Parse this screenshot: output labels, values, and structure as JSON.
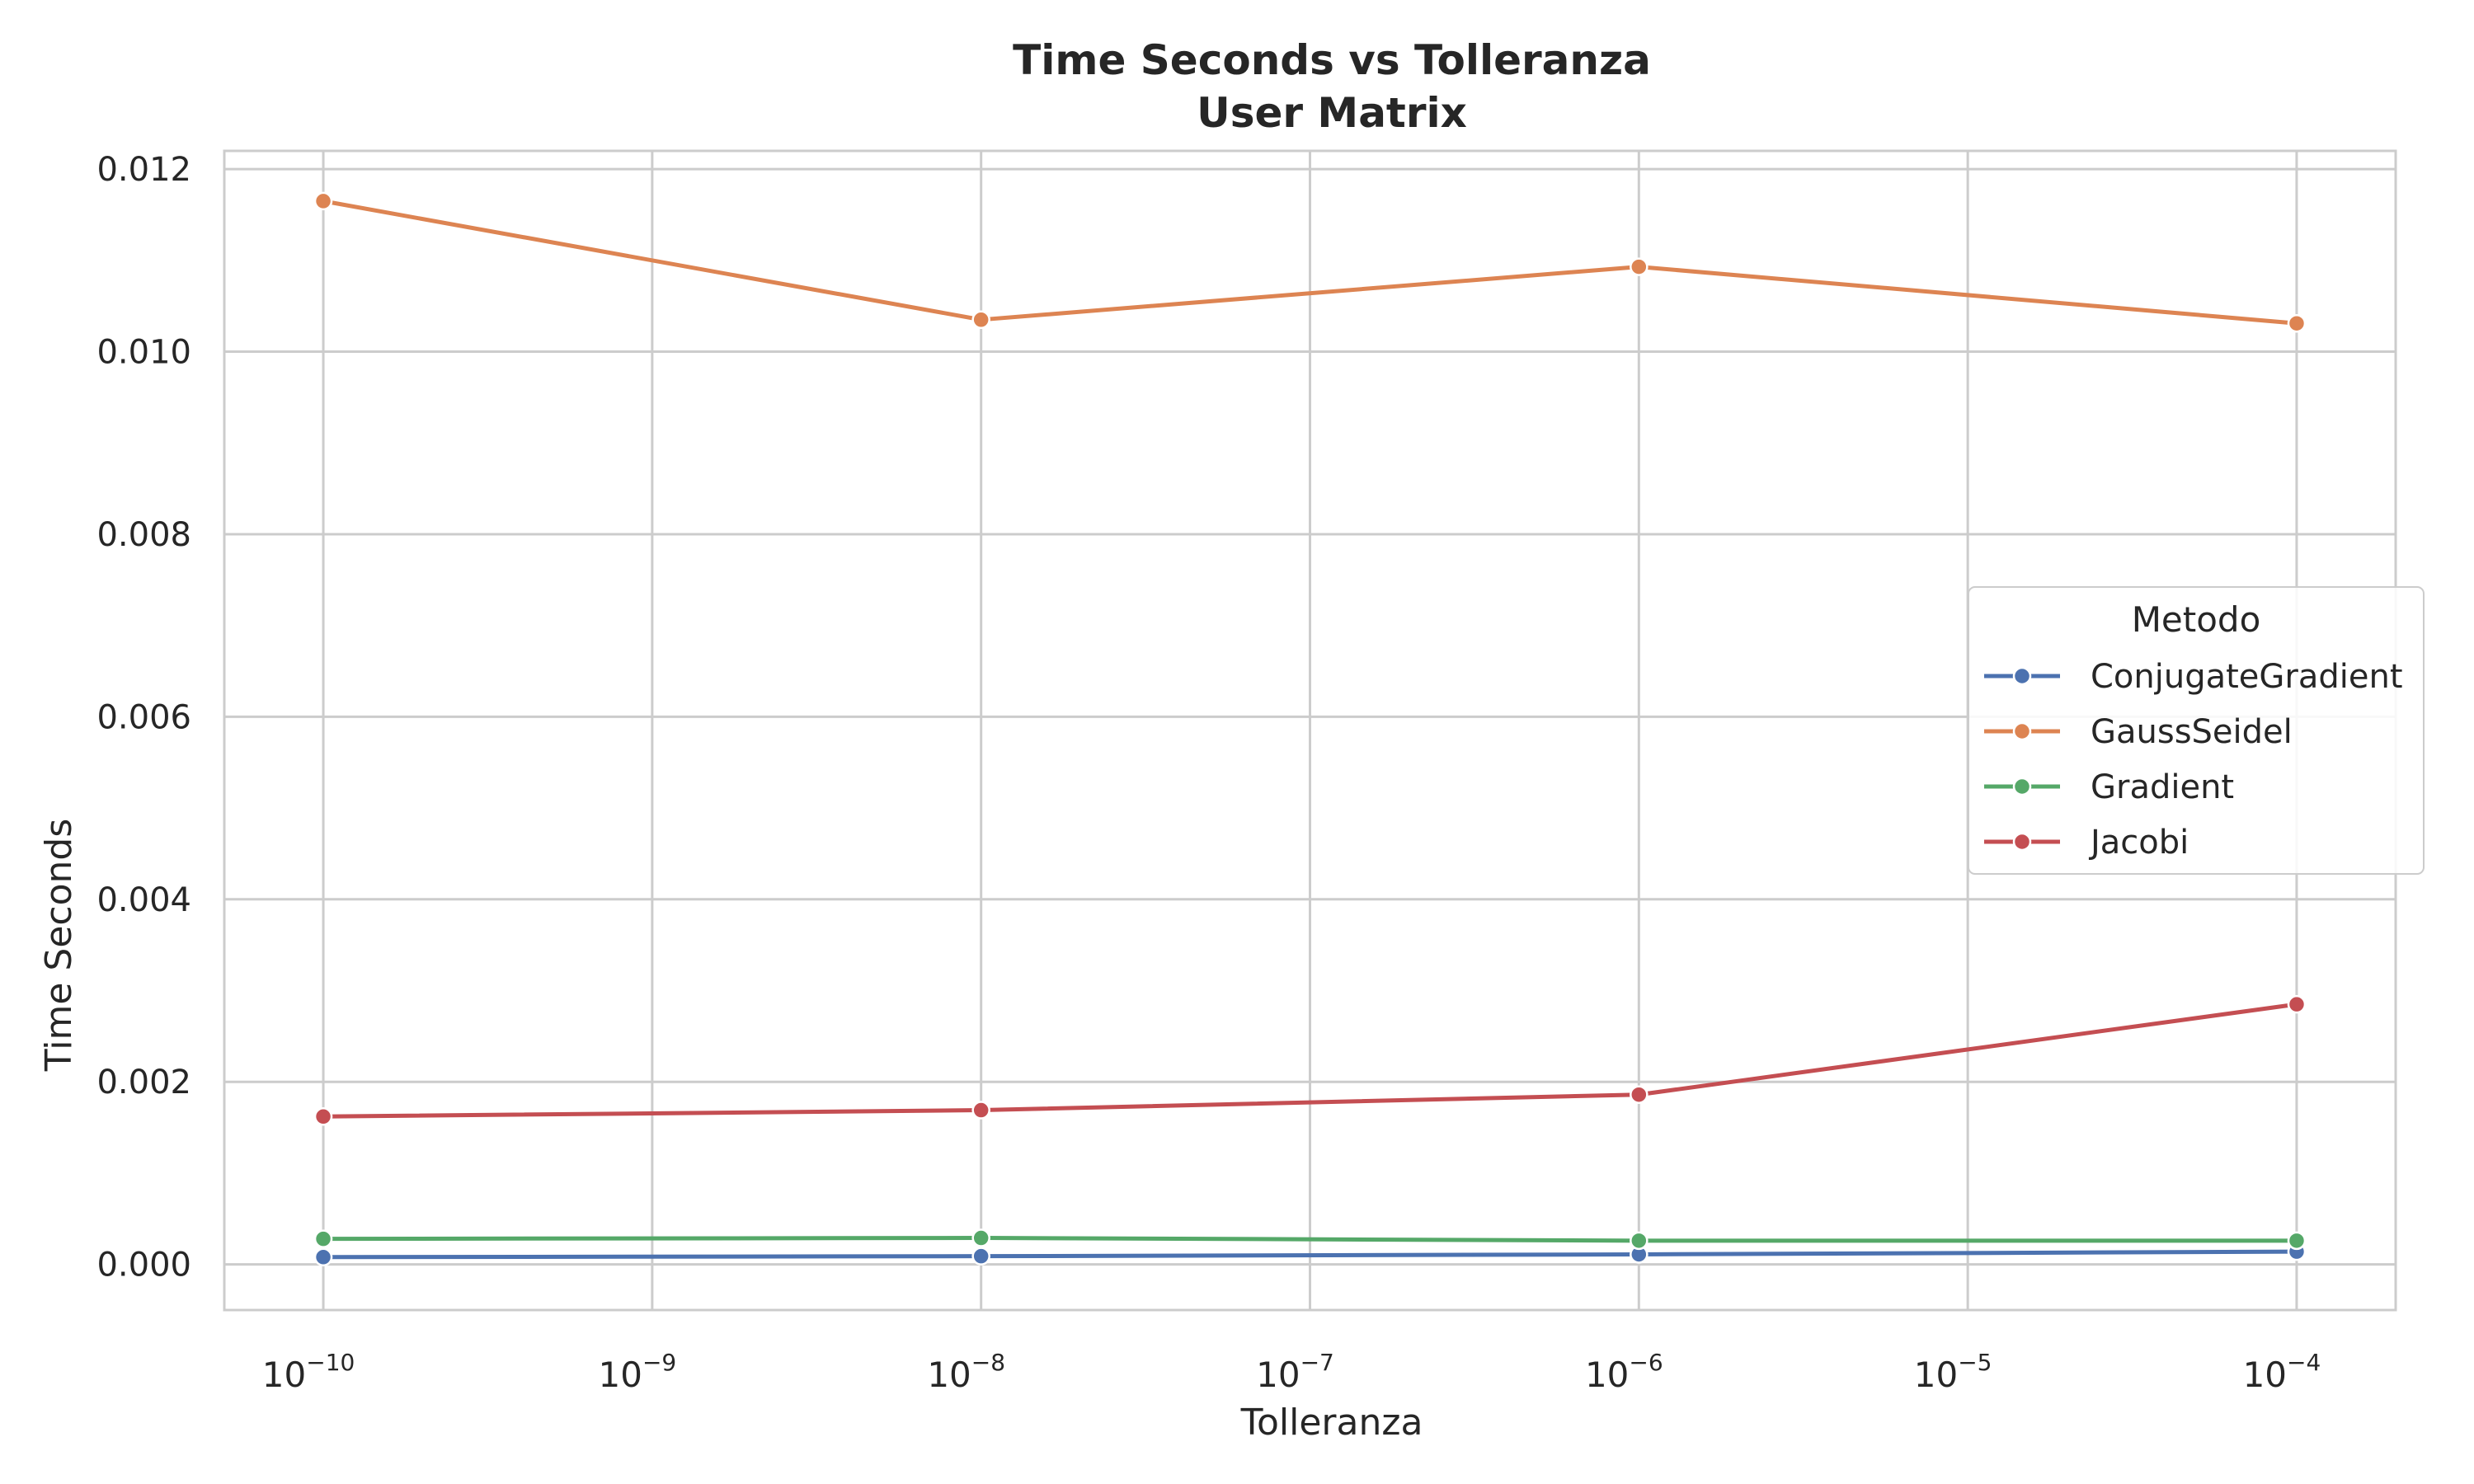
{
  "chart_data": {
    "type": "line",
    "title_line1": "Time Seconds vs        Tolleranza",
    "title_line2": "User Matrix",
    "xlabel": "Tolleranza",
    "ylabel": "Time Seconds",
    "xscale": "log",
    "xlim": [
      5e-11,
      0.0002
    ],
    "ylim": [
      -0.0005,
      0.0122
    ],
    "x": [
      1e-10,
      1e-08,
      1e-06,
      0.0001
    ],
    "x_ticks": [
      {
        "value": 1e-10,
        "base": "10",
        "exp": "−10"
      },
      {
        "value": 1e-09,
        "base": "10",
        "exp": "−9"
      },
      {
        "value": 1e-08,
        "base": "10",
        "exp": "−8"
      },
      {
        "value": 1e-07,
        "base": "10",
        "exp": "−7"
      },
      {
        "value": 1e-06,
        "base": "10",
        "exp": "−6"
      },
      {
        "value": 1e-05,
        "base": "10",
        "exp": "−5"
      },
      {
        "value": 0.0001,
        "base": "10",
        "exp": "−4"
      }
    ],
    "y_ticks": [
      {
        "value": 0.0,
        "label": "0.000"
      },
      {
        "value": 0.002,
        "label": "0.002"
      },
      {
        "value": 0.004,
        "label": "0.004"
      },
      {
        "value": 0.006,
        "label": "0.006"
      },
      {
        "value": 0.008,
        "label": "0.008"
      },
      {
        "value": 0.01,
        "label": "0.010"
      },
      {
        "value": 0.012,
        "label": "0.012"
      }
    ],
    "grid": true,
    "legend": {
      "title": "Metodo",
      "placement": "center-right"
    },
    "series": [
      {
        "name": "ConjugateGradient",
        "color": "#4c72b0",
        "values": [
          8e-05,
          9e-05,
          0.00011,
          0.00014
        ]
      },
      {
        "name": "GaussSeidel",
        "color": "#dd8452",
        "values": [
          0.01165,
          0.01035,
          0.01093,
          0.01031
        ]
      },
      {
        "name": "Gradient",
        "color": "#55a868",
        "values": [
          0.00028,
          0.00029,
          0.00026,
          0.00026
        ]
      },
      {
        "name": "Jacobi",
        "color": "#c44e52",
        "values": [
          0.00162,
          0.00169,
          0.00186,
          0.00285
        ]
      }
    ]
  }
}
